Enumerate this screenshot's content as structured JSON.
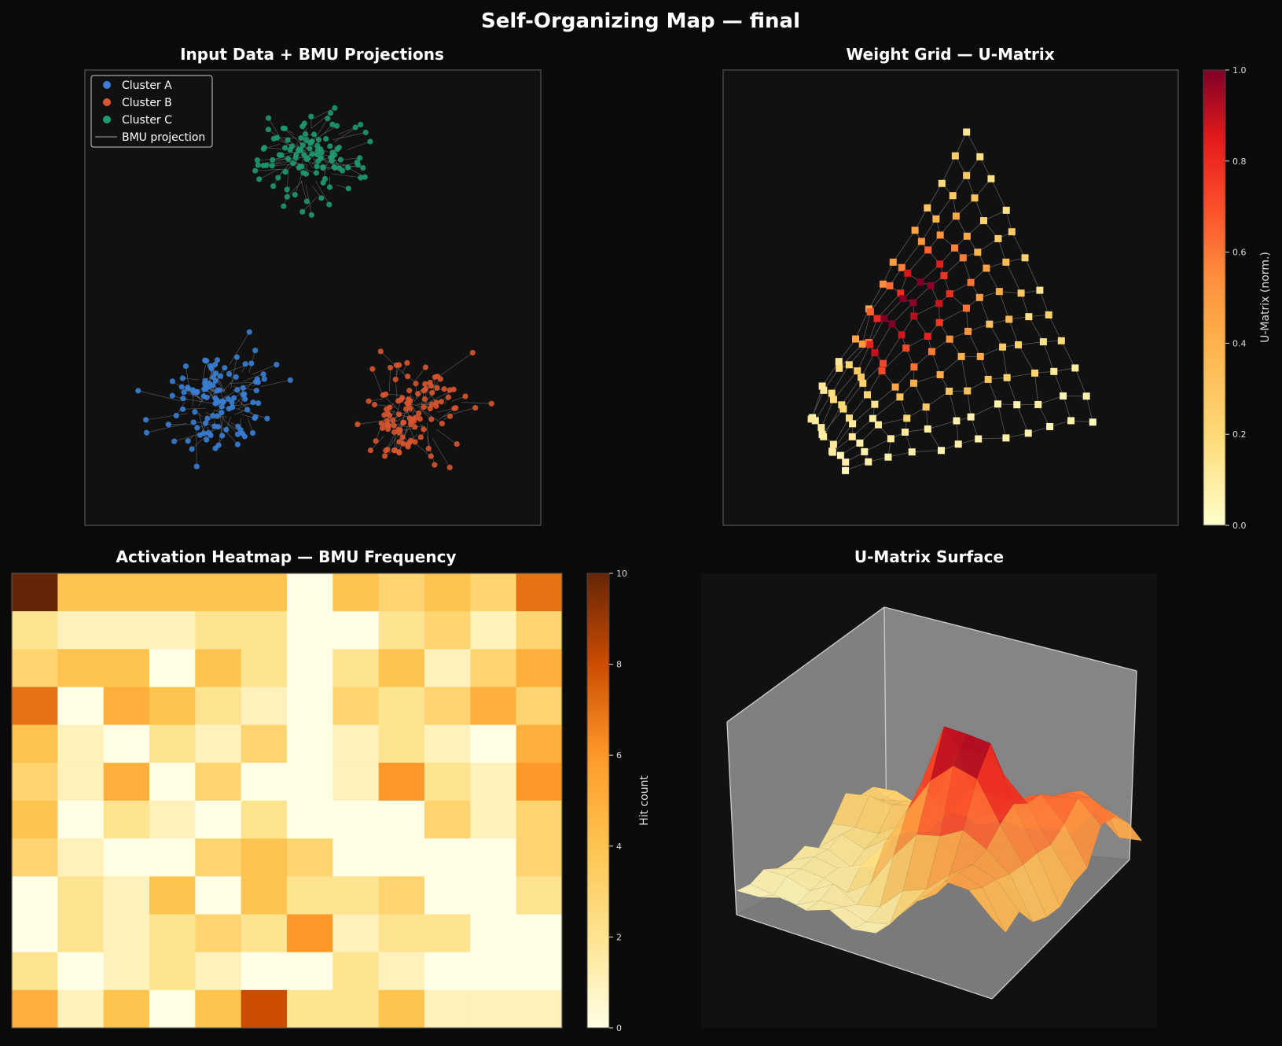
{
  "figure": {
    "title": "Self-Organizing Map — final",
    "background": "#0a0a0a",
    "panel_background": "#111111"
  },
  "chart_data": [
    {
      "type": "scatter",
      "title": "Input Data + BMU Projections",
      "xlabel": "",
      "ylabel": "",
      "xlim": [
        0,
        10
      ],
      "ylim": [
        0,
        10
      ],
      "grid": false,
      "legend": {
        "placement": "top-left",
        "entries": [
          {
            "label": "Cluster A",
            "color": "#3a7fd5",
            "marker": "circle"
          },
          {
            "label": "Cluster B",
            "color": "#d9552f",
            "marker": "circle"
          },
          {
            "label": "Cluster C",
            "color": "#1e9a6f",
            "marker": "circle"
          },
          {
            "label": "BMU projection",
            "color": "#888888",
            "marker": "line"
          }
        ]
      },
      "series": [
        {
          "name": "Cluster A",
          "color": "#3a7fd5",
          "center": [
            2.9,
            2.7
          ],
          "spread": [
            1.0,
            0.8
          ],
          "count": 110
        },
        {
          "name": "Cluster B",
          "color": "#d9552f",
          "center": [
            7.2,
            2.5
          ],
          "spread": [
            0.9,
            0.9
          ],
          "count": 110
        },
        {
          "name": "Cluster C",
          "color": "#1e9a6f",
          "center": [
            5.0,
            8.1
          ],
          "spread": [
            1.0,
            0.8
          ],
          "count": 110
        }
      ]
    },
    {
      "type": "scatter",
      "title": "Weight Grid — U-Matrix",
      "xlabel": "",
      "ylabel": "",
      "xlim": [
        0,
        10
      ],
      "ylim": [
        0,
        10
      ],
      "grid_shape": [
        12,
        12
      ],
      "corners": {
        "top": [
          5.4,
          8.7
        ],
        "left": [
          1.9,
          2.4
        ],
        "bottom": [
          2.7,
          1.3
        ],
        "right": [
          8.2,
          2.3
        ]
      },
      "colorbar": {
        "label": "U-Matrix (norm.)",
        "range": [
          0,
          1
        ],
        "ticks": [
          "0.0",
          "0.2",
          "0.4",
          "0.6",
          "0.8",
          "1.0"
        ],
        "colormap": "YlOrRd"
      }
    },
    {
      "type": "heatmap",
      "title": "Activation Heatmap — BMU Frequency",
      "xlabel": "",
      "ylabel": "",
      "rows": 12,
      "cols": 12,
      "values": [
        [
          10,
          4,
          4,
          4,
          4,
          4,
          0,
          4,
          3,
          4,
          3,
          7
        ],
        [
          2,
          1,
          1,
          1,
          2,
          2,
          0,
          0,
          2,
          3,
          1,
          3
        ],
        [
          3,
          4,
          4,
          0,
          4,
          2,
          0,
          2,
          4,
          1,
          3,
          5
        ],
        [
          7,
          0,
          5,
          4,
          2,
          1,
          0,
          3,
          2,
          3,
          5,
          3
        ],
        [
          4,
          1,
          0,
          2,
          1,
          3,
          0,
          1,
          2,
          1,
          0,
          5
        ],
        [
          3,
          1,
          5,
          0,
          3,
          0,
          0,
          1,
          6,
          2,
          1,
          6
        ],
        [
          4,
          0,
          2,
          1,
          0,
          2,
          0,
          0,
          0,
          3,
          1,
          3
        ],
        [
          3,
          1,
          0,
          0,
          3,
          4,
          3,
          0,
          0,
          0,
          0,
          3
        ],
        [
          0,
          2,
          1,
          4,
          0,
          4,
          2,
          2,
          3,
          0,
          0,
          2
        ],
        [
          0,
          2,
          1,
          2,
          3,
          2,
          6,
          1,
          2,
          2,
          0,
          0
        ],
        [
          2,
          0,
          1,
          2,
          1,
          0,
          0,
          2,
          1,
          0,
          0,
          0
        ],
        [
          5,
          1,
          4,
          0,
          4,
          8,
          2,
          2,
          4,
          1,
          1,
          1
        ]
      ],
      "colorbar": {
        "label": "Hit count",
        "range": [
          0,
          10
        ],
        "ticks": [
          "0",
          "2",
          "4",
          "6",
          "8",
          "10"
        ],
        "colormap": "YlOrBr"
      }
    },
    {
      "type": "area",
      "title": "U-Matrix Surface",
      "xlabel": "",
      "ylabel": "",
      "zlim": [
        0,
        1
      ],
      "grid_shape": [
        12,
        12
      ],
      "colormap": "YlOrRd"
    }
  ]
}
